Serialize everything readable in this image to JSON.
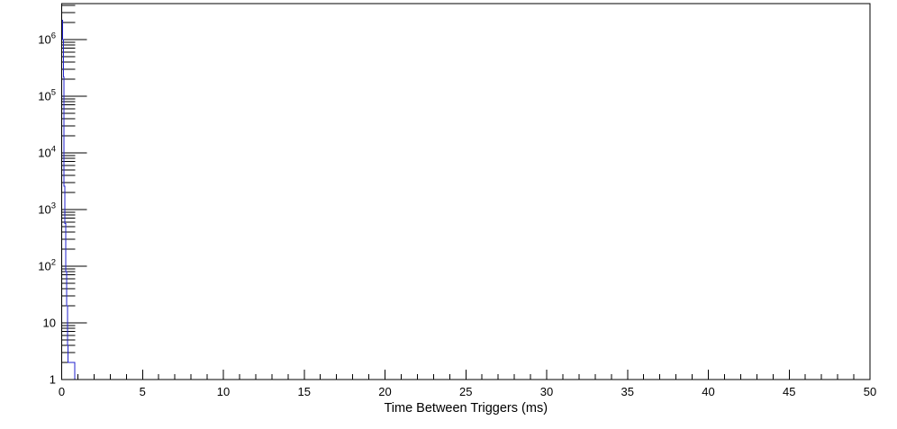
{
  "chart_data": {
    "type": "bar",
    "subtype": "step-histogram-log-y",
    "title": "",
    "xlabel": "Time Between Triggers (ms)",
    "ylabel": "",
    "x_range": [
      0,
      50
    ],
    "y_scale": "log",
    "y_range": [
      1,
      4300000
    ],
    "grid": "off",
    "legend": "none",
    "x_major_ticks": [
      {
        "value": 0,
        "label": "0"
      },
      {
        "value": 5,
        "label": "5"
      },
      {
        "value": 10,
        "label": "10"
      },
      {
        "value": 15,
        "label": "15"
      },
      {
        "value": 20,
        "label": "20"
      },
      {
        "value": 25,
        "label": "25"
      },
      {
        "value": 30,
        "label": "30"
      },
      {
        "value": 35,
        "label": "35"
      },
      {
        "value": 40,
        "label": "40"
      },
      {
        "value": 45,
        "label": "45"
      },
      {
        "value": 50,
        "label": "50"
      }
    ],
    "x_minor_step": 1,
    "y_major_labels": [
      {
        "value": 1000000,
        "base": "10",
        "exp": "6"
      },
      {
        "value": 100000,
        "base": "10",
        "exp": "5"
      },
      {
        "value": 10000,
        "base": "10",
        "exp": "4"
      },
      {
        "value": 1000,
        "base": "10",
        "exp": "3"
      },
      {
        "value": 100,
        "base": "10",
        "exp": "2"
      },
      {
        "value": 10,
        "base": "10",
        "exp": ""
      },
      {
        "value": 1,
        "base": "1",
        "exp": ""
      }
    ],
    "bin_start_ms": 0,
    "bin_width_ms": 0.05,
    "bin_contents": [
      2200000,
      1000000,
      220000,
      2600,
      570,
      80,
      20,
      4,
      2,
      2,
      2,
      2,
      2,
      2,
      2,
      2
    ],
    "series_color": "#2222cc",
    "axis_color": "#000000",
    "background_color": "#ffffff"
  }
}
